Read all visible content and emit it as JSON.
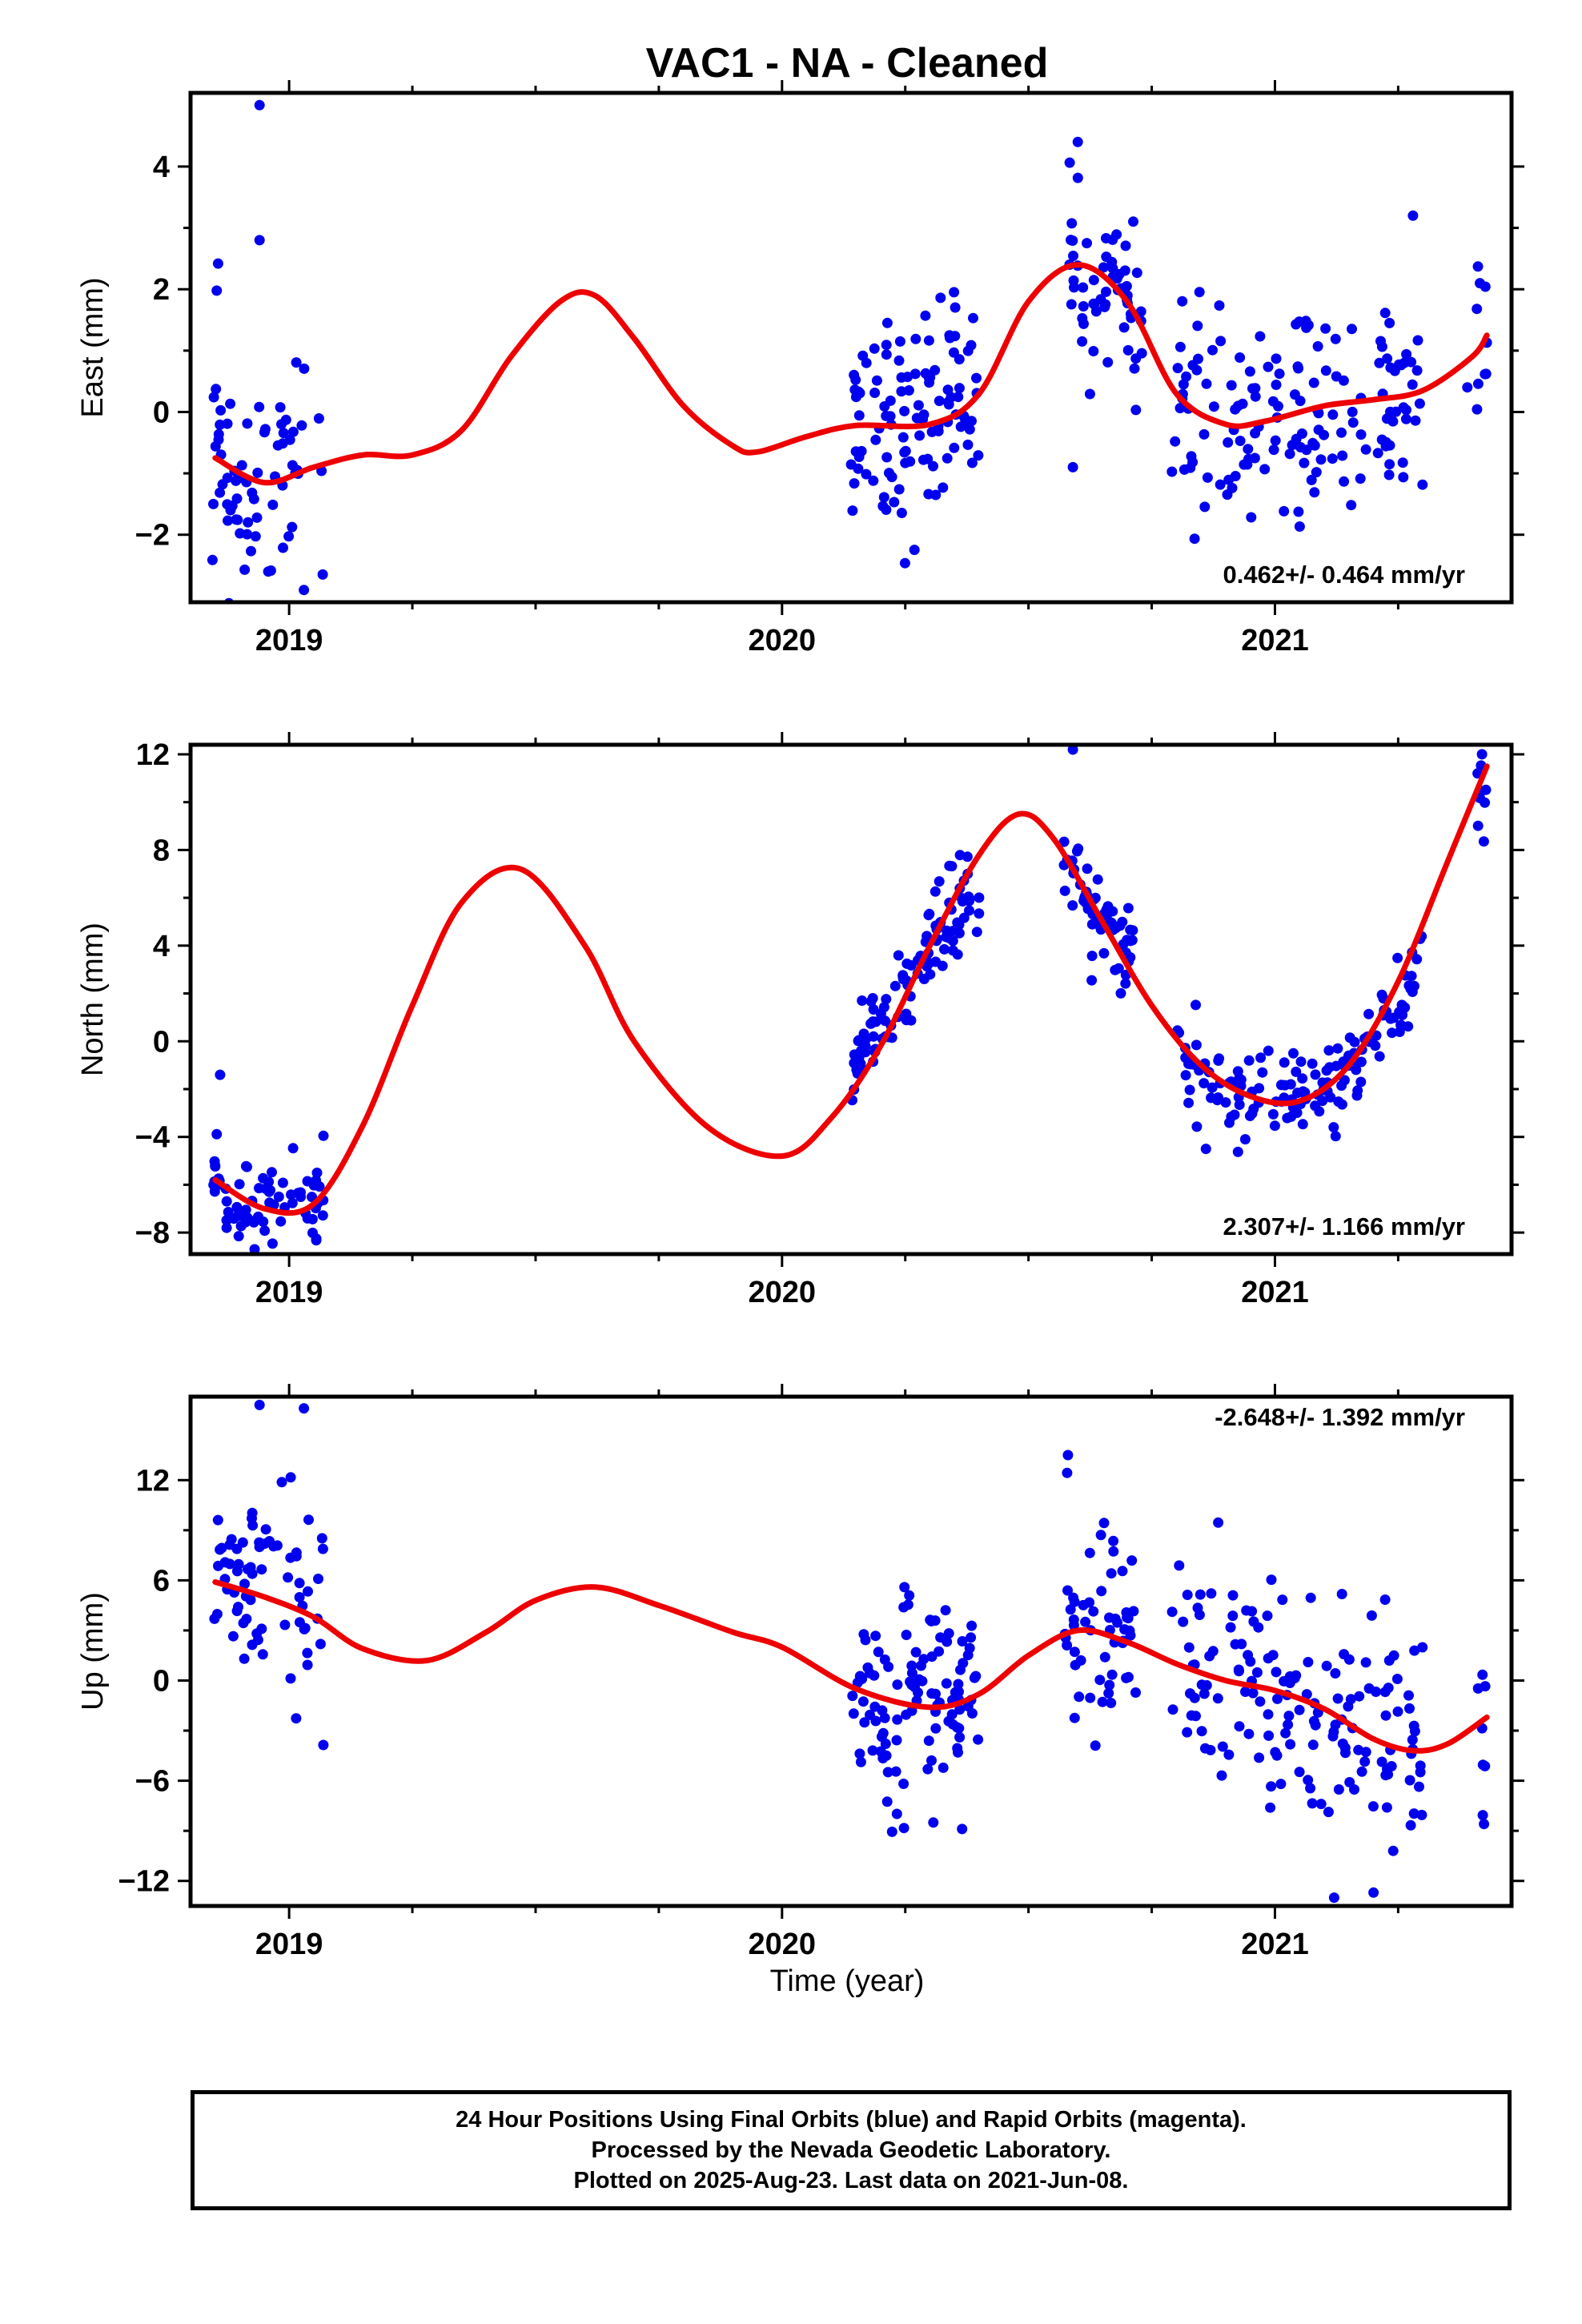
{
  "title": "VAC1  - NA - Cleaned",
  "xlabel": "Time (year)",
  "x_tick_labels": [
    "2019",
    "2020",
    "2021"
  ],
  "colors": {
    "points": "#0000ee",
    "model": "#ee0000",
    "frame": "#000000"
  },
  "footer": {
    "line1": "24 Hour Positions Using Final Orbits (blue) and Rapid Orbits (magenta).",
    "line2": "Processed by the Nevada Geodetic Laboratory.",
    "line3": "Plotted on 2025-Aug-23. Last data on 2021-Jun-08."
  },
  "chart_data": [
    {
      "type": "scatter",
      "ylabel": "East (mm)",
      "rate_label": "0.462+/- 0.464 mm/yr",
      "xlim": [
        2018.8,
        2021.48
      ],
      "ylim": [
        -3.1,
        5.2
      ],
      "yticks": [
        -2,
        0,
        2,
        4
      ],
      "ytick_labels": [
        "−2",
        "0",
        "2",
        "4"
      ],
      "points_seed": 11,
      "point_spread": 0.9,
      "model_curve": {
        "x": [
          2018.85,
          2018.95,
          2019.05,
          2019.15,
          2019.25,
          2019.35,
          2019.45,
          2019.55,
          2019.62,
          2019.7,
          2019.8,
          2019.9,
          2019.95,
          2020.05,
          2020.15,
          2020.3,
          2020.4,
          2020.5,
          2020.6,
          2020.7,
          2020.8,
          2020.9,
          2020.98,
          2021.1,
          2021.2,
          2021.3,
          2021.4,
          2021.43
        ],
        "y": [
          -0.75,
          -1.15,
          -0.9,
          -0.7,
          -0.7,
          -0.3,
          0.9,
          1.8,
          1.9,
          1.2,
          0.1,
          -0.55,
          -0.65,
          -0.4,
          -0.22,
          -0.2,
          0.3,
          1.8,
          2.4,
          1.8,
          0.3,
          -0.2,
          -0.15,
          0.1,
          0.2,
          0.35,
          0.9,
          1.25
        ]
      },
      "point_segments": [
        {
          "x0": 2018.84,
          "x1": 2019.07,
          "n": 70,
          "center": -0.8
        },
        {
          "x0": 2020.14,
          "x1": 2020.4,
          "n": 110,
          "center": -0.1
        },
        {
          "x0": 2020.58,
          "x1": 2020.73,
          "n": 60,
          "center": 2.2
        },
        {
          "x0": 2020.79,
          "x1": 2021.3,
          "n": 150,
          "center": -0.3
        },
        {
          "x0": 2021.39,
          "x1": 2021.43,
          "n": 10,
          "center": 1.1
        }
      ],
      "outliers": [
        [
          2018.94,
          5.0
        ],
        [
          2018.94,
          2.8
        ],
        [
          2020.6,
          4.4
        ],
        [
          2021.28,
          3.2
        ],
        [
          2019.03,
          -2.9
        ],
        [
          2020.59,
          -0.9
        ]
      ]
    },
    {
      "type": "scatter",
      "ylabel": "North (mm)",
      "rate_label": "2.307+/- 1.166 mm/yr",
      "xlim": [
        2018.8,
        2021.48
      ],
      "ylim": [
        -8.9,
        12.4
      ],
      "yticks": [
        -8,
        -4,
        0,
        4,
        8,
        12
      ],
      "ytick_labels": [
        "−8",
        "−4",
        "0",
        "4",
        "8",
        "12"
      ],
      "points_seed": 23,
      "point_spread": 0.9,
      "model_curve": {
        "x": [
          2018.85,
          2018.95,
          2019.05,
          2019.15,
          2019.25,
          2019.35,
          2019.47,
          2019.6,
          2019.7,
          2019.85,
          2020.0,
          2020.1,
          2020.2,
          2020.3,
          2020.4,
          2020.48,
          2020.55,
          2020.65,
          2020.75,
          2020.85,
          2020.95,
          2021.05,
          2021.15,
          2021.25,
          2021.35,
          2021.43
        ],
        "y": [
          -5.8,
          -7.0,
          -6.8,
          -3.5,
          1.5,
          5.8,
          7.2,
          4.0,
          0.0,
          -3.6,
          -4.8,
          -3.2,
          -0.2,
          4.0,
          7.8,
          9.5,
          8.5,
          5.0,
          1.5,
          -1.0,
          -2.3,
          -2.5,
          -1.0,
          2.5,
          7.5,
          11.5
        ]
      },
      "point_segments": [
        {
          "x0": 2018.84,
          "x1": 2019.07,
          "n": 70,
          "center": -5.5
        },
        {
          "x0": 2020.14,
          "x1": 2020.4,
          "n": 110,
          "center": 3.5
        },
        {
          "x0": 2020.57,
          "x1": 2020.72,
          "n": 60,
          "center": 6.0
        },
        {
          "x0": 2020.8,
          "x1": 2021.3,
          "n": 150,
          "center": -2.0
        },
        {
          "x0": 2021.41,
          "x1": 2021.43,
          "n": 8,
          "center": 8.5
        }
      ],
      "outliers": [
        [
          2018.86,
          -1.4
        ],
        [
          2020.59,
          12.2
        ],
        [
          2021.42,
          12.0
        ],
        [
          2018.93,
          -8.7
        ],
        [
          2020.86,
          -4.5
        ]
      ]
    },
    {
      "type": "scatter",
      "ylabel": "Up (mm)",
      "rate_label": "-2.648+/- 1.392 mm/yr",
      "xlim": [
        2018.8,
        2021.48
      ],
      "ylim": [
        -13.5,
        17.0
      ],
      "yticks": [
        -12,
        -6,
        0,
        6,
        12
      ],
      "ytick_labels": [
        "−12",
        "−6",
        "0",
        "6",
        "12"
      ],
      "points_seed": 37,
      "point_spread": 3.2,
      "model_curve": {
        "x": [
          2018.85,
          2018.95,
          2019.05,
          2019.15,
          2019.28,
          2019.4,
          2019.5,
          2019.62,
          2019.75,
          2019.9,
          2020.0,
          2020.15,
          2020.3,
          2020.4,
          2020.5,
          2020.6,
          2020.7,
          2020.8,
          2020.9,
          2021.0,
          2021.1,
          2021.2,
          2021.28,
          2021.35,
          2021.43
        ],
        "y": [
          5.9,
          5.0,
          3.8,
          1.9,
          1.2,
          2.9,
          4.8,
          5.6,
          4.5,
          2.9,
          2.0,
          -0.5,
          -1.6,
          -0.8,
          1.5,
          3.0,
          2.3,
          1.0,
          0.0,
          -0.6,
          -1.7,
          -3.5,
          -4.2,
          -3.8,
          -2.2
        ]
      },
      "point_segments": [
        {
          "x0": 2018.84,
          "x1": 2019.07,
          "n": 70,
          "center": 4.5
        },
        {
          "x0": 2020.14,
          "x1": 2020.4,
          "n": 110,
          "center": -1.2
        },
        {
          "x0": 2020.57,
          "x1": 2020.72,
          "n": 55,
          "center": 3.0
        },
        {
          "x0": 2020.79,
          "x1": 2021.3,
          "n": 150,
          "center": -1.5
        },
        {
          "x0": 2021.41,
          "x1": 2021.43,
          "n": 8,
          "center": -1.0
        }
      ],
      "outliers": [
        [
          2018.94,
          16.5
        ],
        [
          2019.03,
          16.3
        ],
        [
          2020.58,
          13.5
        ],
        [
          2021.12,
          -13.0
        ],
        [
          2021.2,
          -12.7
        ],
        [
          2021.24,
          -10.2
        ]
      ]
    }
  ]
}
